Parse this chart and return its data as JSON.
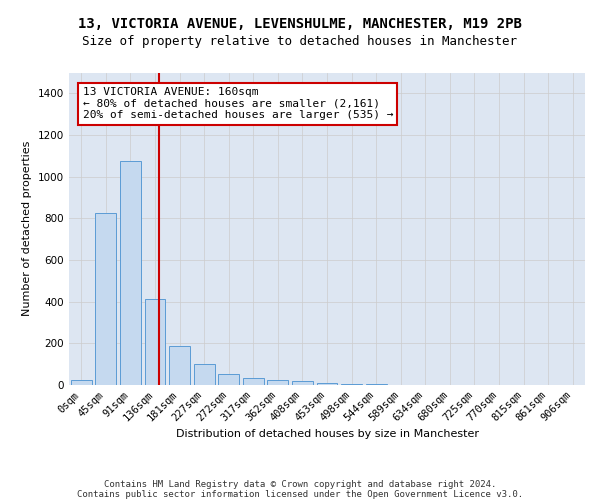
{
  "title_line1": "13, VICTORIA AVENUE, LEVENSHULME, MANCHESTER, M19 2PB",
  "title_line2": "Size of property relative to detached houses in Manchester",
  "xlabel": "Distribution of detached houses by size in Manchester",
  "ylabel": "Number of detached properties",
  "bar_labels": [
    "0sqm",
    "45sqm",
    "91sqm",
    "136sqm",
    "181sqm",
    "227sqm",
    "272sqm",
    "317sqm",
    "362sqm",
    "408sqm",
    "453sqm",
    "498sqm",
    "544sqm",
    "589sqm",
    "634sqm",
    "680sqm",
    "725sqm",
    "770sqm",
    "815sqm",
    "861sqm",
    "906sqm"
  ],
  "bar_values": [
    25,
    825,
    1075,
    415,
    185,
    100,
    55,
    35,
    25,
    18,
    8,
    5,
    3,
    0,
    0,
    0,
    0,
    0,
    0,
    0,
    0
  ],
  "bar_color": "#c5d9ef",
  "bar_edgecolor": "#5b9bd5",
  "vline_x": 3.15,
  "vline_color": "#cc0000",
  "vline_linewidth": 1.5,
  "annotation_text": "13 VICTORIA AVENUE: 160sqm\n← 80% of detached houses are smaller (2,161)\n20% of semi-detached houses are larger (535) →",
  "annotation_box_edgecolor": "#cc0000",
  "ylim": [
    0,
    1500
  ],
  "yticks": [
    0,
    200,
    400,
    600,
    800,
    1000,
    1200,
    1400
  ],
  "grid_color": "#cccccc",
  "background_color": "#dde6f2",
  "footer_text": "Contains HM Land Registry data © Crown copyright and database right 2024.\nContains public sector information licensed under the Open Government Licence v3.0.",
  "title_fontsize": 10,
  "subtitle_fontsize": 9,
  "axis_label_fontsize": 8,
  "tick_fontsize": 7.5,
  "annotation_fontsize": 8,
  "footer_fontsize": 6.5
}
